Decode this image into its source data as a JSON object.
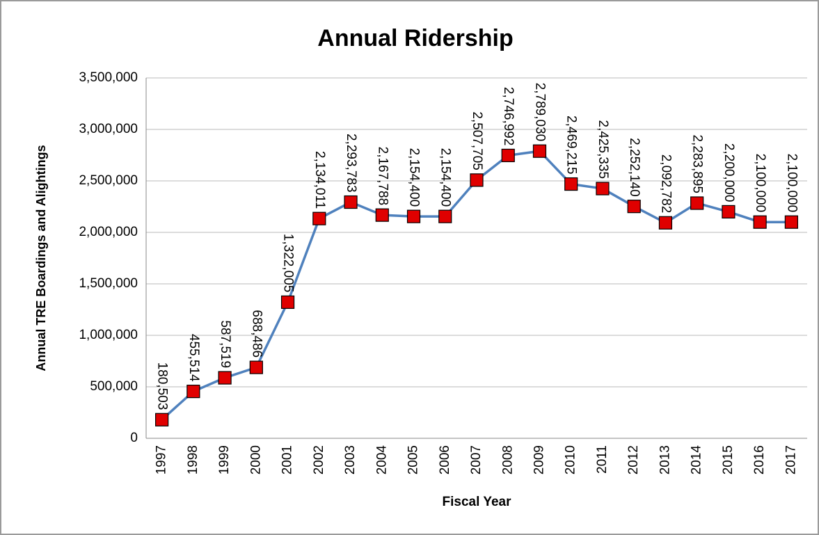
{
  "chart_data": {
    "type": "line",
    "title": "Annual Ridership",
    "x_label": "Fiscal Year",
    "y_label": "Annual TRE Boardings and Alightings",
    "categories": [
      "1997",
      "1998",
      "1999",
      "2000",
      "2001",
      "2002",
      "2003",
      "2004",
      "2005",
      "2006",
      "2007",
      "2008",
      "2009",
      "2010",
      "2011",
      "2012",
      "2013",
      "2014",
      "2015",
      "2016",
      "2017"
    ],
    "series": [
      {
        "name": "Annual Ridership",
        "color": "#4f81bd",
        "marker_color": "#e00000",
        "values": [
          180503,
          455514,
          587519,
          688486,
          1322005,
          2134011,
          2293783,
          2167788,
          2154400,
          2154400,
          2507705,
          2746992,
          2789030,
          2469215,
          2425335,
          2252140,
          2092782,
          2283895,
          2200000,
          2100000,
          2100000
        ],
        "value_labels": [
          "180,503",
          "455,514",
          "587,519",
          "688,486",
          "1,322,005",
          "2,134,011",
          "2,293,783",
          "2,167,788",
          "2,154,400",
          "2,154,400",
          "2,507,705",
          "2,746,992",
          "2,789,030",
          "2,469,215",
          "2,425,335",
          "2,252,140",
          "2,092,782",
          "2,283,895",
          "2,200,000",
          "2,100,000",
          "2,100,000"
        ]
      }
    ],
    "ylim": [
      0,
      3500000
    ],
    "yticks": [
      0,
      {
        "value": 500000,
        "label": "500,000"
      },
      {
        "value": 1000000,
        "label": "1,000,000"
      },
      {
        "value": 1500000,
        "label": "1,500,000"
      },
      {
        "value": 2000000,
        "label": "2,000,000"
      },
      {
        "value": 2500000,
        "label": "2,500,000"
      },
      {
        "value": 3000000,
        "label": "3,000,000"
      },
      {
        "value": 3500000,
        "label": "3,500,000"
      }
    ],
    "grid": true
  }
}
